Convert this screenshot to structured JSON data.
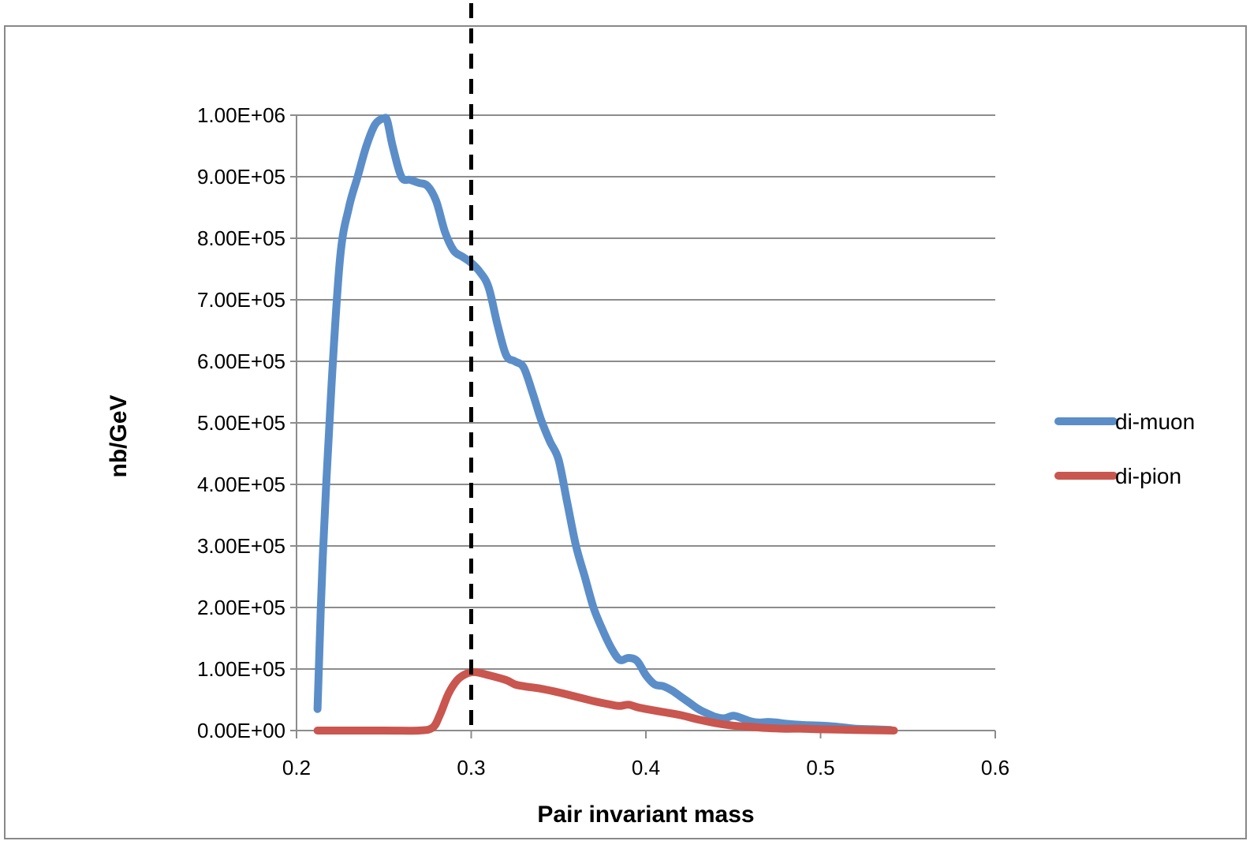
{
  "chart_data": {
    "type": "line",
    "title": "",
    "xlabel": "Pair invariant mass",
    "ylabel": "nb/GeV",
    "xlim": [
      0.2,
      0.6
    ],
    "ylim": [
      0,
      1000000
    ],
    "x_ticks": [
      0.2,
      0.3,
      0.4,
      0.5,
      0.6
    ],
    "x_tick_labels": [
      "0.2",
      "0.3",
      "0.4",
      "0.5",
      "0.6"
    ],
    "y_ticks": [
      0,
      100000,
      200000,
      300000,
      400000,
      500000,
      600000,
      700000,
      800000,
      900000,
      1000000
    ],
    "y_tick_labels": [
      "0.00E+00",
      "1.00E+05",
      "2.00E+05",
      "3.00E+05",
      "4.00E+05",
      "5.00E+05",
      "6.00E+05",
      "7.00E+05",
      "8.00E+05",
      "9.00E+05",
      "1.00E+06"
    ],
    "grid": "horizontal",
    "legend_position": "right",
    "reference_line_x": 0.3,
    "series": [
      {
        "name": "di-muon",
        "color": "#5b8ec8",
        "x": [
          0.212,
          0.215,
          0.22,
          0.225,
          0.23,
          0.235,
          0.24,
          0.245,
          0.25,
          0.252,
          0.255,
          0.26,
          0.265,
          0.27,
          0.275,
          0.28,
          0.285,
          0.29,
          0.295,
          0.3,
          0.305,
          0.31,
          0.315,
          0.32,
          0.325,
          0.33,
          0.335,
          0.34,
          0.345,
          0.35,
          0.355,
          0.36,
          0.365,
          0.37,
          0.375,
          0.38,
          0.385,
          0.39,
          0.395,
          0.4,
          0.405,
          0.41,
          0.415,
          0.42,
          0.425,
          0.43,
          0.435,
          0.44,
          0.445,
          0.45,
          0.455,
          0.46,
          0.465,
          0.47,
          0.475,
          0.48,
          0.49,
          0.5,
          0.51,
          0.52,
          0.53,
          0.54
        ],
        "values": [
          35000,
          280000,
          560000,
          770000,
          850000,
          900000,
          950000,
          985000,
          995000,
          990000,
          950000,
          900000,
          895000,
          890000,
          885000,
          860000,
          810000,
          780000,
          770000,
          760000,
          745000,
          720000,
          660000,
          610000,
          600000,
          590000,
          550000,
          505000,
          470000,
          440000,
          370000,
          300000,
          250000,
          200000,
          165000,
          135000,
          115000,
          118000,
          113000,
          90000,
          75000,
          72000,
          65000,
          55000,
          45000,
          35000,
          28000,
          22000,
          20000,
          24000,
          20000,
          15000,
          13000,
          14000,
          13000,
          11000,
          9000,
          8000,
          6000,
          3000,
          2000,
          1000
        ]
      },
      {
        "name": "di-pion",
        "color": "#c9564f",
        "x": [
          0.212,
          0.25,
          0.27,
          0.278,
          0.282,
          0.287,
          0.292,
          0.297,
          0.302,
          0.31,
          0.32,
          0.325,
          0.33,
          0.34,
          0.35,
          0.36,
          0.37,
          0.38,
          0.385,
          0.39,
          0.395,
          0.4,
          0.41,
          0.42,
          0.43,
          0.44,
          0.45,
          0.46,
          0.47,
          0.48,
          0.49,
          0.5,
          0.51,
          0.52,
          0.53,
          0.542
        ],
        "values": [
          0,
          0,
          0,
          5000,
          25000,
          60000,
          82000,
          92000,
          95000,
          90000,
          82000,
          75000,
          72000,
          68000,
          62000,
          55000,
          48000,
          42000,
          40000,
          42000,
          38000,
          35000,
          30000,
          25000,
          18000,
          12000,
          8000,
          6000,
          4000,
          3000,
          3000,
          2000,
          1500,
          1000,
          500,
          0
        ]
      }
    ]
  }
}
